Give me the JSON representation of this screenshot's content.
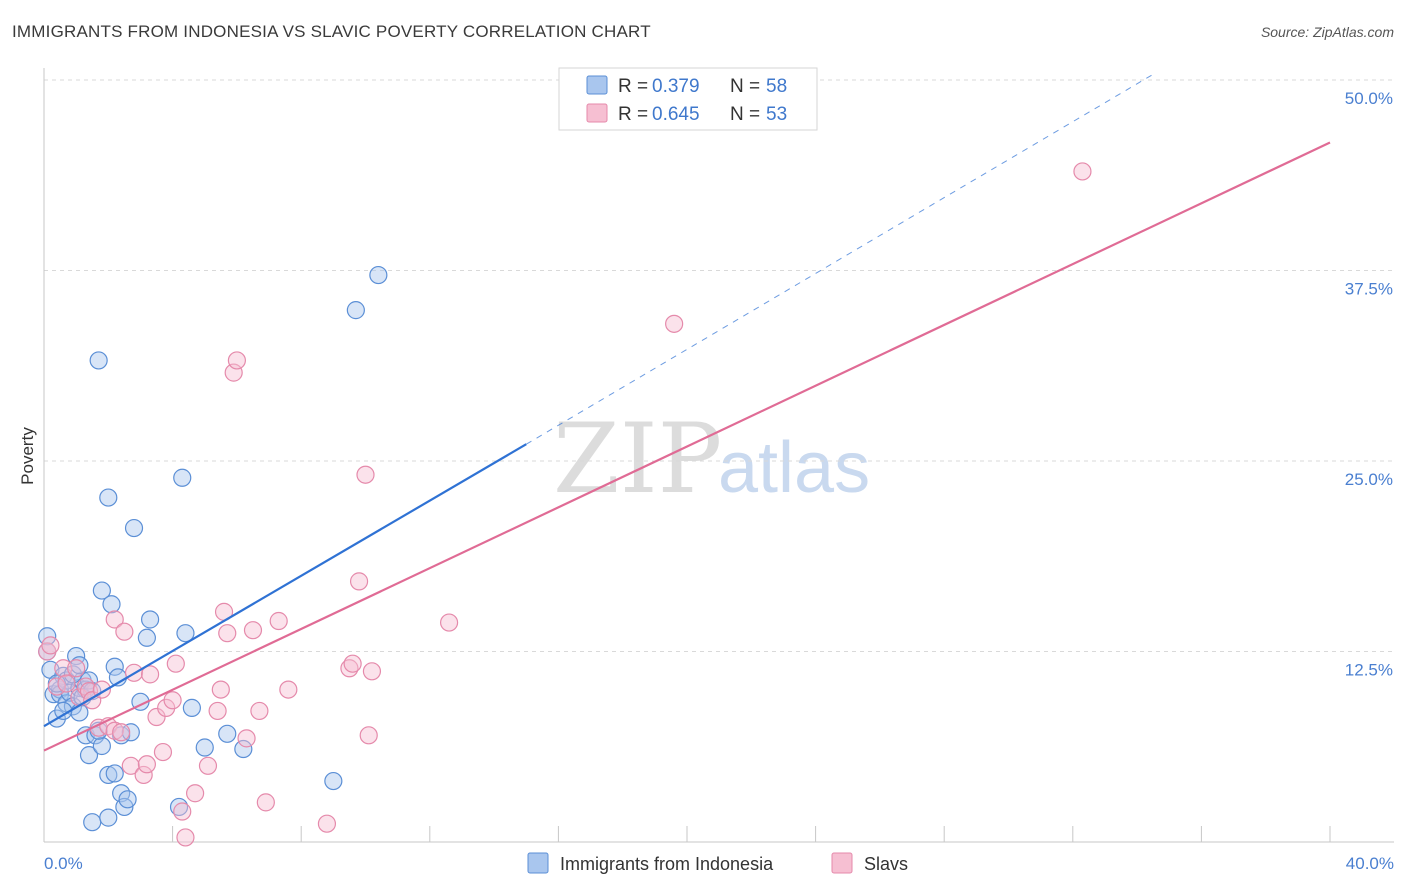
{
  "title": "IMMIGRANTS FROM INDONESIA VS SLAVIC POVERTY CORRELATION CHART",
  "source": "Source: ZipAtlas.com",
  "watermark": {
    "zip": "ZIP",
    "atlas": "atlas"
  },
  "colors": {
    "blue_fill": "#a9c6ee",
    "blue_stroke": "#5b8fd6",
    "blue_line": "#2f72d4",
    "pink_fill": "#f6bfd2",
    "pink_stroke": "#e58aab",
    "pink_line": "#e06b95",
    "grid": "#d9d9d9",
    "tick_text": "#4a7fd0"
  },
  "legend": {
    "rows": [
      {
        "r_label": "R =",
        "r_value": "0.379",
        "n_label": "N =",
        "n_value": "58"
      },
      {
        "r_label": "R =",
        "r_value": "0.645",
        "n_label": "N =",
        "n_value": "53"
      }
    ]
  },
  "chart_data": {
    "type": "scatter",
    "title": "IMMIGRANTS FROM INDONESIA VS SLAVIC POVERTY CORRELATION CHART",
    "xlabel": "",
    "ylabel": "Poverty",
    "xlim": [
      0,
      40
    ],
    "ylim": [
      0,
      50
    ],
    "x_tick_labels": [
      "0.0%",
      "40.0%"
    ],
    "y_ticks": [
      12.5,
      25.0,
      37.5,
      50.0
    ],
    "y_tick_labels": [
      "12.5%",
      "25.0%",
      "37.5%",
      "50.0%"
    ],
    "series": [
      {
        "name": "Immigrants from Indonesia",
        "r": 0.379,
        "n": 58,
        "trend": {
          "x0": 0,
          "y0": 7.6,
          "x1": 15,
          "y1": 26.1,
          "dash_to_x": 34.6,
          "dash_to_y": 50.5
        },
        "points": [
          [
            0.1,
            13.5
          ],
          [
            0.1,
            12.5
          ],
          [
            0.2,
            11.3
          ],
          [
            0.3,
            9.7
          ],
          [
            0.4,
            8.1
          ],
          [
            0.5,
            10.0
          ],
          [
            0.5,
            9.7
          ],
          [
            0.6,
            10.9
          ],
          [
            0.7,
            10.6
          ],
          [
            0.7,
            9.1
          ],
          [
            0.8,
            9.8
          ],
          [
            0.9,
            8.9
          ],
          [
            1.0,
            12.2
          ],
          [
            1.1,
            10.1
          ],
          [
            1.1,
            8.5
          ],
          [
            1.2,
            10.6
          ],
          [
            1.3,
            10.0
          ],
          [
            1.4,
            10.6
          ],
          [
            1.3,
            7.0
          ],
          [
            1.4,
            5.7
          ],
          [
            1.5,
            1.3
          ],
          [
            1.6,
            7.0
          ],
          [
            1.7,
            31.6
          ],
          [
            1.8,
            16.5
          ],
          [
            1.8,
            6.3
          ],
          [
            1.7,
            7.3
          ],
          [
            2.0,
            1.6
          ],
          [
            2.0,
            4.4
          ],
          [
            2.0,
            22.6
          ],
          [
            2.1,
            15.6
          ],
          [
            2.2,
            4.5
          ],
          [
            2.2,
            11.5
          ],
          [
            2.4,
            7.0
          ],
          [
            2.4,
            3.2
          ],
          [
            2.5,
            2.3
          ],
          [
            2.6,
            2.8
          ],
          [
            2.7,
            7.2
          ],
          [
            2.8,
            20.6
          ],
          [
            3.2,
            13.4
          ],
          [
            3.3,
            14.6
          ],
          [
            4.2,
            2.3
          ],
          [
            4.3,
            23.9
          ],
          [
            4.4,
            13.7
          ],
          [
            4.6,
            8.8
          ],
          [
            5.0,
            6.2
          ],
          [
            5.7,
            7.1
          ],
          [
            6.2,
            6.1
          ],
          [
            9.0,
            4.0
          ],
          [
            9.7,
            34.9
          ],
          [
            10.4,
            37.2
          ],
          [
            0.4,
            10.4
          ],
          [
            0.9,
            11.0
          ],
          [
            1.2,
            9.5
          ],
          [
            1.5,
            9.9
          ],
          [
            2.3,
            10.8
          ],
          [
            3.0,
            9.2
          ],
          [
            0.6,
            8.6
          ],
          [
            1.1,
            11.6
          ]
        ]
      },
      {
        "name": "Slavs",
        "r": 0.645,
        "n": 53,
        "trend": {
          "x0": 0,
          "y0": 6.0,
          "x1": 40,
          "y1": 45.9
        },
        "points": [
          [
            0.1,
            12.5
          ],
          [
            0.2,
            12.9
          ],
          [
            0.4,
            10.2
          ],
          [
            0.6,
            11.4
          ],
          [
            0.7,
            10.4
          ],
          [
            1.0,
            11.4
          ],
          [
            1.1,
            9.5
          ],
          [
            1.3,
            10.2
          ],
          [
            1.4,
            9.9
          ],
          [
            1.5,
            9.3
          ],
          [
            1.7,
            7.5
          ],
          [
            1.8,
            10.0
          ],
          [
            2.0,
            7.6
          ],
          [
            2.2,
            7.3
          ],
          [
            2.2,
            14.6
          ],
          [
            2.4,
            7.2
          ],
          [
            2.5,
            13.8
          ],
          [
            2.7,
            5.0
          ],
          [
            2.8,
            11.1
          ],
          [
            3.1,
            4.4
          ],
          [
            3.2,
            5.1
          ],
          [
            3.3,
            11.0
          ],
          [
            3.5,
            8.2
          ],
          [
            3.7,
            5.9
          ],
          [
            3.8,
            8.8
          ],
          [
            4.0,
            9.3
          ],
          [
            4.1,
            11.7
          ],
          [
            4.3,
            2.0
          ],
          [
            4.4,
            0.3
          ],
          [
            4.7,
            3.2
          ],
          [
            5.1,
            5.0
          ],
          [
            5.4,
            8.6
          ],
          [
            5.5,
            10.0
          ],
          [
            5.6,
            15.1
          ],
          [
            5.7,
            13.7
          ],
          [
            5.9,
            30.8
          ],
          [
            6.0,
            31.6
          ],
          [
            6.3,
            6.8
          ],
          [
            6.5,
            13.9
          ],
          [
            6.7,
            8.6
          ],
          [
            6.9,
            2.6
          ],
          [
            7.3,
            14.5
          ],
          [
            7.6,
            10.0
          ],
          [
            8.8,
            1.2
          ],
          [
            9.5,
            11.4
          ],
          [
            9.6,
            11.7
          ],
          [
            9.8,
            17.1
          ],
          [
            10.0,
            24.1
          ],
          [
            10.1,
            7.0
          ],
          [
            10.2,
            11.2
          ],
          [
            12.6,
            14.4
          ],
          [
            19.6,
            34.0
          ],
          [
            32.3,
            44.0
          ]
        ]
      }
    ]
  },
  "bottom_legend": {
    "items": [
      {
        "label": "Immigrants from Indonesia"
      },
      {
        "label": "Slavs"
      }
    ]
  }
}
